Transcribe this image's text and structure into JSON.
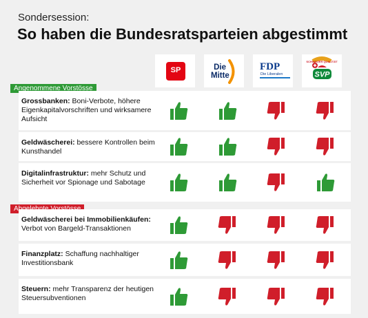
{
  "header": {
    "kicker": "Sondersession:",
    "title": "So haben die Bundesratsparteien abgestimmt"
  },
  "parties": [
    {
      "id": "sp",
      "label": "SP"
    },
    {
      "id": "mitte",
      "label": "Die Mitte"
    },
    {
      "id": "fdp",
      "label": "FDP",
      "sublabel": "Die Liberalen"
    },
    {
      "id": "svp",
      "label": "SVP",
      "sublabel": "SCHWEIZER QUALITÄT"
    }
  ],
  "colors": {
    "yes": "#2e9a36",
    "no": "#d01e2a",
    "sp": "#e30613",
    "mitte_accent": "#f39200",
    "fdp": "#0b3b8c",
    "svp": "#0f8a3a"
  },
  "sections": {
    "accepted": "Angenommene Vorstösse",
    "rejected": "Abgelehnte Vorstösse"
  },
  "rows": [
    {
      "bold": "Grossbanken:",
      "text": " Boni-Verbote, höhere Eigenkapitalvorschriften und wirksamere Aufsicht"
    },
    {
      "bold": "Geldwäscherei:",
      "text": " bessere Kontrollen beim Kunsthandel"
    },
    {
      "bold": "Digitalinfrastruktur:",
      "text": " mehr Schutz und Sicherheit vor Spionage und Sabotage"
    },
    {
      "bold": "Geldwäscherei bei Immobilienkäufen:",
      "text": " Verbot von Bargeld-Transaktionen"
    },
    {
      "bold": "Finanzplatz:",
      "text": " Schaffung nachhaltiger Investitionsbank"
    },
    {
      "bold": "Steuern:",
      "text": " mehr Transparenz der heutigen Steuersubventionen"
    }
  ],
  "chart_data": {
    "type": "table",
    "columns": [
      "SP",
      "Die Mitte",
      "FDP",
      "SVP"
    ],
    "groups": [
      {
        "name": "Angenommene Vorstösse",
        "rows": [
          {
            "label": "Grossbanken: Boni-Verbote, höhere Eigenkapitalvorschriften und wirksamere Aufsicht",
            "votes": [
              "yes",
              "yes",
              "no",
              "no"
            ]
          },
          {
            "label": "Geldwäscherei: bessere Kontrollen beim Kunsthandel",
            "votes": [
              "yes",
              "yes",
              "no",
              "no"
            ]
          },
          {
            "label": "Digitalinfrastruktur: mehr Schutz und Sicherheit vor Spionage und Sabotage",
            "votes": [
              "yes",
              "yes",
              "no",
              "yes"
            ]
          }
        ]
      },
      {
        "name": "Abgelehnte Vorstösse",
        "rows": [
          {
            "label": "Geldwäscherei bei Immobilienkäufen: Verbot von Bargeld-Transaktionen",
            "votes": [
              "yes",
              "no",
              "no",
              "no"
            ]
          },
          {
            "label": "Finanzplatz: Schaffung nachhaltiger Investitionsbank",
            "votes": [
              "yes",
              "no",
              "no",
              "no"
            ]
          },
          {
            "label": "Steuern: mehr Transparenz der heutigen Steuersubventionen",
            "votes": [
              "yes",
              "no",
              "no",
              "no"
            ]
          }
        ]
      }
    ]
  }
}
